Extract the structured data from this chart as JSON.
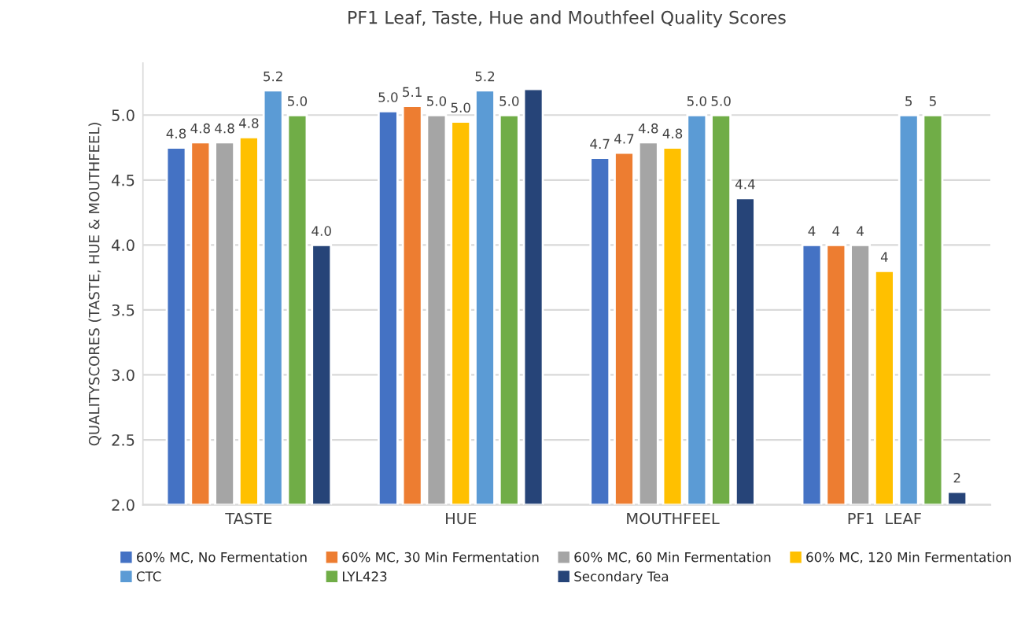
{
  "chart_data": {
    "type": "bar",
    "title": "PF1 Leaf, Taste, Hue and Mouthfeel Quality Scores",
    "ylabel": "QUALITYSCORES (TASTE, HUE & MOUTHFEEL)",
    "categories": [
      "TASTE",
      "HUE",
      "MOUTHFEEL",
      "PF1  LEAF"
    ],
    "series": [
      {
        "name": "60% MC, No Fermentation",
        "color": "#4472c4",
        "values": [
          4.75,
          5.03,
          4.67,
          4.0
        ],
        "value_labels": [
          "4.8",
          "5.0",
          "4.7",
          "4"
        ]
      },
      {
        "name": "60% MC, 30 Min Fermentation",
        "color": "#ed7d31",
        "values": [
          4.79,
          5.07,
          4.71,
          4.0
        ],
        "value_labels": [
          "4.8",
          "5.1",
          "4.7",
          "4"
        ]
      },
      {
        "name": "60% MC, 60 Min Fermentation",
        "color": "#a5a5a5",
        "values": [
          4.79,
          5.0,
          4.79,
          4.0
        ],
        "value_labels": [
          "4.8",
          "5.0",
          "4.8",
          "4"
        ]
      },
      {
        "name": "60% MC, 120 Min Fermentation",
        "color": "#ffc000",
        "values": [
          4.83,
          4.95,
          4.75,
          3.8
        ],
        "value_labels": [
          "4.8",
          "5.0",
          "4.8",
          "4"
        ]
      },
      {
        "name": "CTC",
        "color": "#5b9bd5",
        "values": [
          5.19,
          5.19,
          5.0,
          5.0
        ],
        "value_labels": [
          "5.2",
          "5.2",
          "5.0",
          "5"
        ]
      },
      {
        "name": "LYL423",
        "color": "#70ad47",
        "values": [
          5.0,
          5.0,
          5.0,
          5.0
        ],
        "value_labels": [
          "5.0",
          "5.0",
          "5.0",
          "5"
        ]
      },
      {
        "name": "Secondary Tea",
        "color": "#264478",
        "values": [
          4.0,
          5.2,
          4.36,
          2.1
        ],
        "value_labels": [
          "4.0",
          null,
          "4.4",
          "2"
        ]
      }
    ],
    "ylim": [
      2.0,
      5.4
    ],
    "yticks": [
      "2.0",
      "2.5",
      "3.0",
      "3.5",
      "4.0",
      "4.5",
      "5.0"
    ],
    "grid": "y",
    "legend": "bottom"
  }
}
